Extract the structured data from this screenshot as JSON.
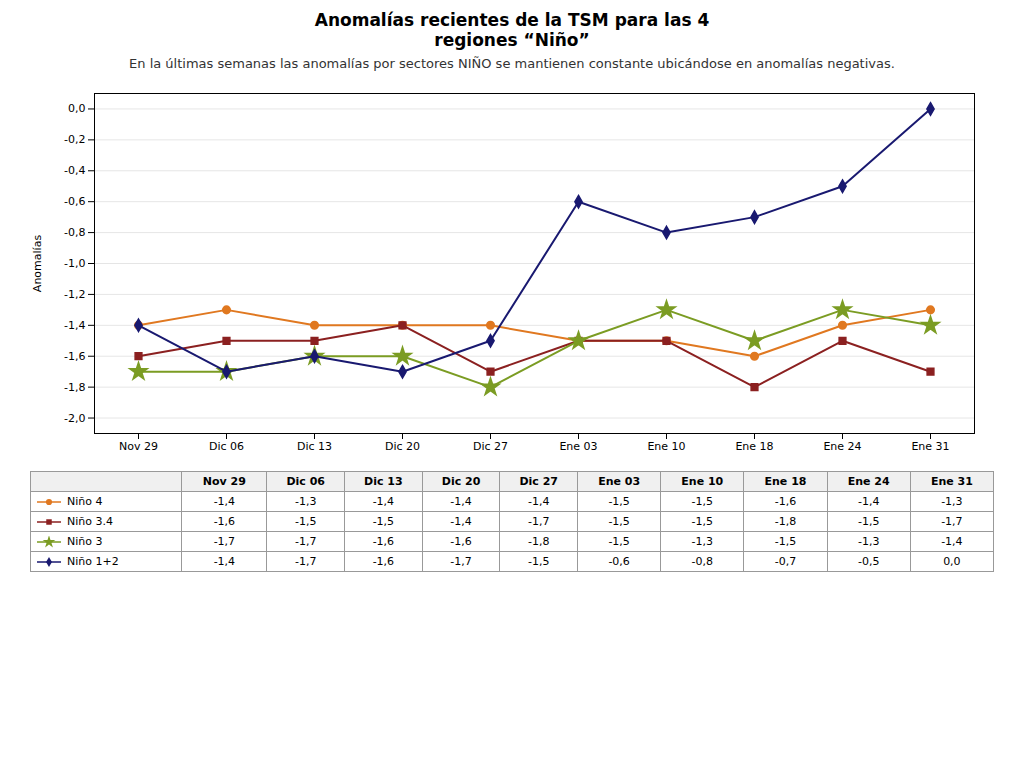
{
  "chart_data": {
    "type": "line",
    "title": "Anomalías recientes de la TSM para las 4\nregiones “Niño”",
    "subtitle": "En la últimas semanas las anomalías por sectores NIÑO se mantienen constante ubicándose en anomalías negativas.",
    "ylabel": "Anomalías",
    "categories": [
      "Nov 29",
      "Dic 06",
      "Dic 13",
      "Dic 20",
      "Dic 27",
      "Ene 03",
      "Ene 10",
      "Ene 18",
      "Ene 24",
      "Ene 31"
    ],
    "series": [
      {
        "name": "Niño 4",
        "color": "#E07820",
        "marker": "circle",
        "values": [
          -1.4,
          -1.3,
          -1.4,
          -1.4,
          -1.4,
          -1.5,
          -1.5,
          -1.6,
          -1.4,
          -1.3
        ],
        "value_labels": [
          "-1,4",
          "-1,3",
          "-1,4",
          "-1,4",
          "-1,4",
          "-1,5",
          "-1,5",
          "-1,6",
          "-1,4",
          "-1,3"
        ]
      },
      {
        "name": "Niño 3.4",
        "color": "#8B2020",
        "marker": "square",
        "values": [
          -1.6,
          -1.5,
          -1.5,
          -1.4,
          -1.7,
          -1.5,
          -1.5,
          -1.8,
          -1.5,
          -1.7
        ],
        "value_labels": [
          "-1,6",
          "-1,5",
          "-1,5",
          "-1,4",
          "-1,7",
          "-1,5",
          "-1,5",
          "-1,8",
          "-1,5",
          "-1,7"
        ]
      },
      {
        "name": "Niño 3",
        "color": "#7B9C23",
        "marker": "star",
        "values": [
          -1.7,
          -1.7,
          -1.6,
          -1.6,
          -1.8,
          -1.5,
          -1.3,
          -1.5,
          -1.3,
          -1.4
        ],
        "value_labels": [
          "-1,7",
          "-1,7",
          "-1,6",
          "-1,6",
          "-1,8",
          "-1,5",
          "-1,3",
          "-1,5",
          "-1,3",
          "-1,4"
        ]
      },
      {
        "name": "Niño 1+2",
        "color": "#191970",
        "marker": "diamond",
        "values": [
          -1.4,
          -1.7,
          -1.6,
          -1.7,
          -1.5,
          -0.6,
          -0.8,
          -0.7,
          -0.5,
          0.0
        ],
        "value_labels": [
          "-1,4",
          "-1,7",
          "-1,6",
          "-1,7",
          "-1,5",
          "-0,6",
          "-0,8",
          "-0,7",
          "-0,5",
          "0,0"
        ]
      }
    ],
    "ylim": [
      -2.1,
      0.1
    ],
    "yticks": [
      {
        "value": 0.0,
        "label": "0,0"
      },
      {
        "value": -0.2,
        "label": "-0,2"
      },
      {
        "value": -0.4,
        "label": "-0,4"
      },
      {
        "value": -0.6,
        "label": "-0,6"
      },
      {
        "value": -0.8,
        "label": "-0,8"
      },
      {
        "value": -1.0,
        "label": "-1,0"
      },
      {
        "value": -1.2,
        "label": "-1,2"
      },
      {
        "value": -1.4,
        "label": "-1,4"
      },
      {
        "value": -1.6,
        "label": "-1,6"
      },
      {
        "value": -1.8,
        "label": "-1,8"
      },
      {
        "value": -2.0,
        "label": "-2,0"
      }
    ],
    "grid": true
  }
}
